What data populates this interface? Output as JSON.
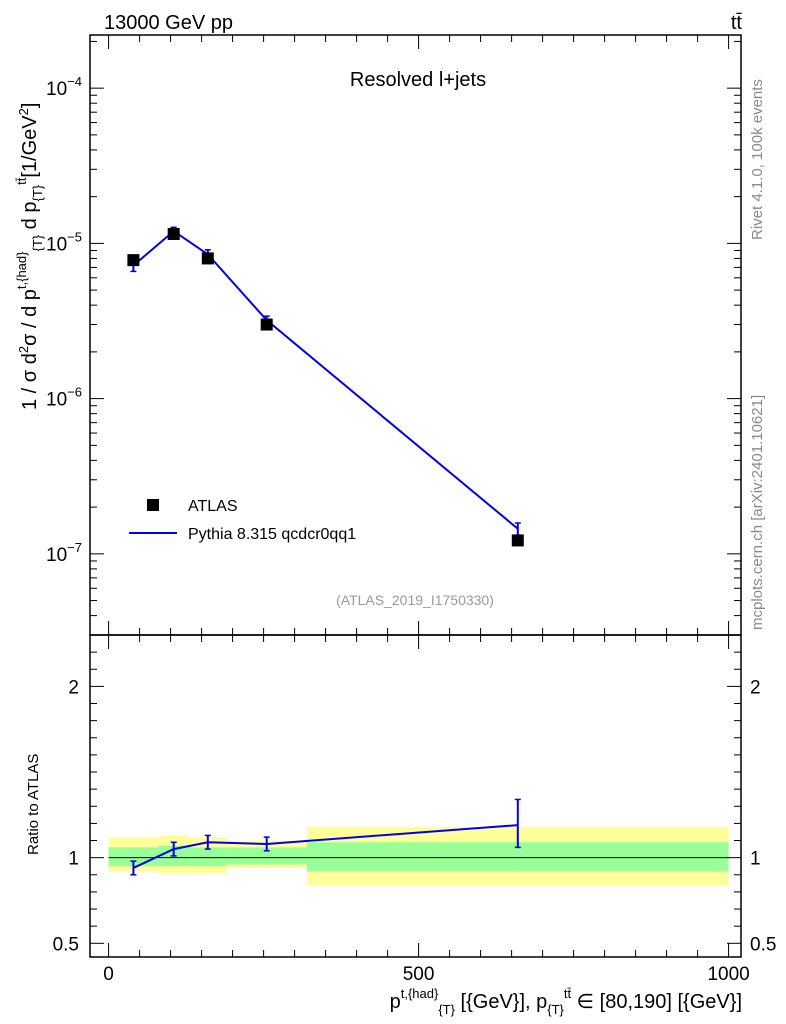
{
  "header": {
    "left": "13000 GeV pp",
    "right": "tt̄"
  },
  "side": {
    "rivet": "Rivet 4.1.0,  100k events",
    "mcplots": "mcplots.cern.ch [arXiv:2401.10621]"
  },
  "chart_data": [
    {
      "panel": "main",
      "type": "scatter",
      "title": "Resolved l+jets",
      "analysis_label": "(ATLAS_2019_I1750330)",
      "ylabel": "1 / σ d²σ / d p^{t,{had}}_{T} d p_{T}^{tt̄} [1/GeV²]",
      "yscale": "log",
      "ylim": [
        3e-08,
        0.00022
      ],
      "xlim": [
        -30,
        1020
      ],
      "ytick_labels": [
        "10^-7",
        "10^-6",
        "10^-5",
        "10^-4"
      ],
      "legend": [
        {
          "label": "ATLAS",
          "style": "marker"
        },
        {
          "label": "Pythia 8.315 qcdcr0qq1",
          "style": "line",
          "color": "#0000ee"
        }
      ],
      "series": [
        {
          "name": "ATLAS",
          "x": [
            40,
            105,
            160,
            255,
            660
          ],
          "values": [
            7.8e-06,
            1.15e-05,
            8e-06,
            3e-06,
            1.22e-07
          ]
        },
        {
          "name": "Pythia 8.315 qcdcr0qq1",
          "x": [
            40,
            105,
            160,
            255,
            660
          ],
          "values": [
            7.2e-06,
            1.2e-05,
            8.5e-06,
            3.2e-06,
            1.45e-07
          ],
          "err_low": [
            6.6e-06,
            1.13e-05,
            7.9e-06,
            3e-06,
            1.32e-07
          ],
          "err_high": [
            7.8e-06,
            1.27e-05,
            9.1e-06,
            3.4e-06,
            1.58e-07
          ]
        }
      ]
    },
    {
      "panel": "ratio",
      "type": "line",
      "ylabel": "Ratio to ATLAS",
      "ylim": [
        0.42,
        2.3
      ],
      "ytick_labels": [
        "0.5",
        "1",
        "2"
      ],
      "xlabel": "p^{t,{had}}_{T} [{GeV}], p_{T}^{tt̄} ∈ [80,190] [{GeV}]",
      "xtick_labels": [
        "0",
        "500",
        "1000"
      ],
      "bins": [
        {
          "lo": 0,
          "hi": 80,
          "stat": [
            0.95,
            1.06
          ],
          "total": [
            0.92,
            1.12
          ]
        },
        {
          "lo": 80,
          "hi": 130,
          "stat": [
            0.95,
            1.07
          ],
          "total": [
            0.91,
            1.13
          ]
        },
        {
          "lo": 130,
          "hi": 190,
          "stat": [
            0.95,
            1.06
          ],
          "total": [
            0.91,
            1.12
          ]
        },
        {
          "lo": 190,
          "hi": 320,
          "stat": [
            0.96,
            1.06
          ],
          "total": [
            0.94,
            1.1
          ]
        },
        {
          "lo": 320,
          "hi": 1000,
          "stat": [
            0.92,
            1.09
          ],
          "total": [
            0.84,
            1.18
          ]
        }
      ],
      "series": [
        {
          "name": "Pythia 8.315 qcdcr0qq1",
          "x": [
            40,
            105,
            160,
            255,
            660
          ],
          "values": [
            0.94,
            1.05,
            1.09,
            1.08,
            1.19
          ],
          "err_low": [
            0.9,
            1.01,
            1.05,
            1.04,
            1.06
          ],
          "err_high": [
            0.98,
            1.09,
            1.13,
            1.12,
            1.34
          ]
        }
      ]
    }
  ]
}
